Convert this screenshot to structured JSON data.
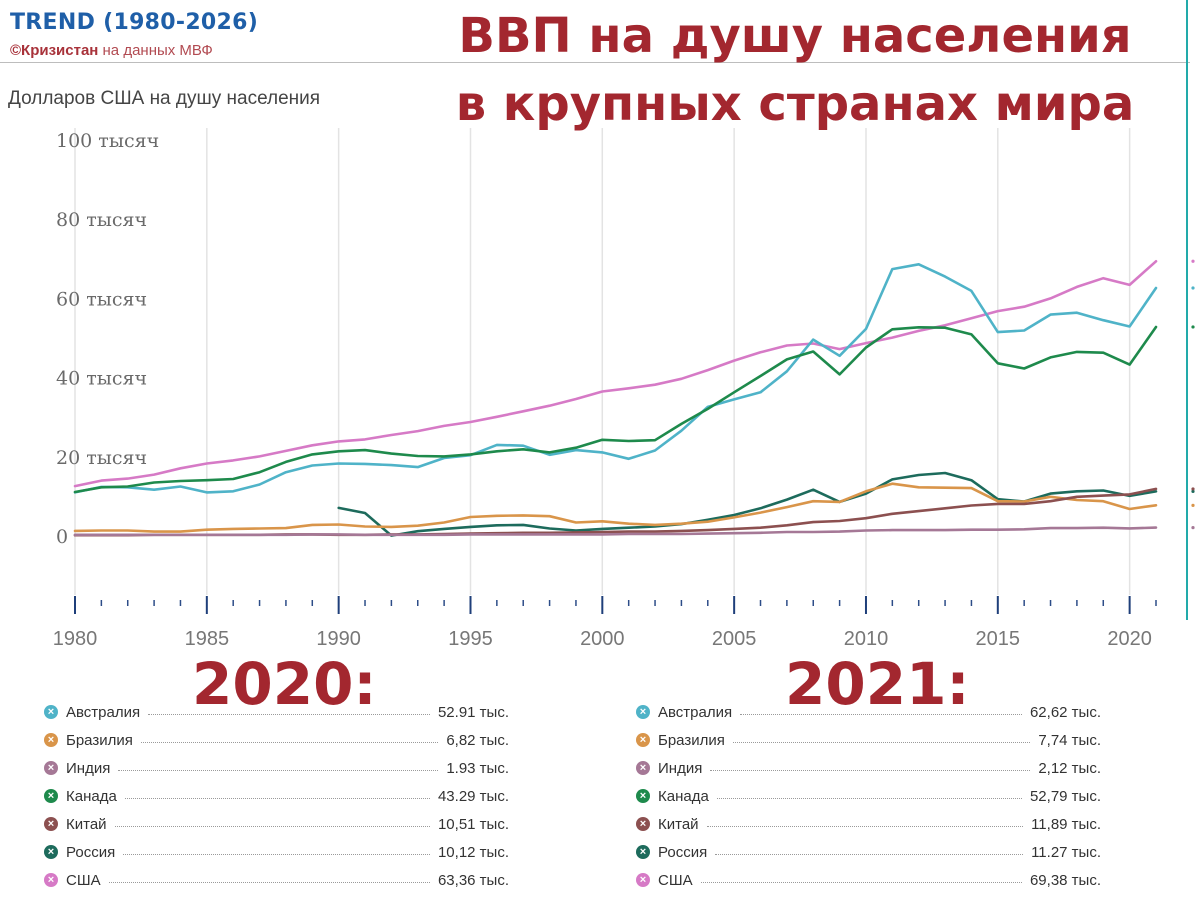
{
  "header": {
    "brand": "TREND (1980-2026)",
    "credit_bold": "©Кризистан",
    "credit_rest": " на данных МВФ",
    "title_line1": "ВВП на душу населения",
    "title_line2": "в крупных странах мира",
    "unit_label": "Долларов США на душу населения"
  },
  "colors": {
    "title": "#a3272f",
    "brand": "#1f5fa8",
    "Австралия": "#4fb3c8",
    "Бразилия": "#d9954a",
    "Индия": "#a57896",
    "Канада": "#1e8a4c",
    "Китай": "#8c5050",
    "Россия": "#1d6b5c",
    "США": "#d67ac6"
  },
  "chart_data": {
    "type": "line",
    "title": "ВВП на душу населения в крупных странах мира",
    "ylabel": "Долларов США на душу населения",
    "xlim": [
      1980,
      2021
    ],
    "ylim": [
      -20000,
      100000
    ],
    "ytick_values": [
      0,
      20000,
      40000,
      60000,
      80000,
      100000
    ],
    "ytick_labels": [
      "0",
      "20 тысяч",
      "40 тысяч",
      "60 тысяч",
      "80 тысяч",
      "100 тысяч"
    ],
    "xtick_values": [
      1980,
      1985,
      1990,
      1995,
      2000,
      2005,
      2010,
      2015,
      2020
    ],
    "xtick_labels": [
      "1980",
      "1985",
      "1990",
      "1995",
      "2000",
      "2005",
      "2010",
      "2015",
      "2020"
    ],
    "grid": true,
    "series": [
      {
        "name": "США",
        "x_start": 1980,
        "values": [
          12600,
          14000,
          14500,
          15500,
          17100,
          18300,
          19100,
          20100,
          21500,
          22900,
          23900,
          24400,
          25500,
          26500,
          27800,
          28800,
          30100,
          31500,
          32900,
          34600,
          36500,
          37300,
          38200,
          39700,
          41900,
          44300,
          46400,
          48100,
          48600,
          47200,
          48700,
          50100,
          51800,
          53200,
          55000,
          56800,
          57900,
          60000,
          62900,
          65100,
          63400,
          69380
        ]
      },
      {
        "name": "Австралия",
        "x_start": 1980,
        "values": [
          11000,
          12400,
          12300,
          11700,
          12500,
          11000,
          11300,
          13000,
          16100,
          17800,
          18300,
          18200,
          17900,
          17400,
          19700,
          20400,
          23000,
          22800,
          20500,
          21700,
          21100,
          19500,
          21600,
          26600,
          32600,
          34500,
          36300,
          41600,
          49600,
          45500,
          52300,
          67400,
          68600,
          65500,
          61900,
          51500,
          51900,
          55900,
          56400,
          54500,
          52910,
          62620
        ]
      },
      {
        "name": "Канада",
        "x_start": 1980,
        "values": [
          11100,
          12300,
          12500,
          13500,
          13900,
          14100,
          14400,
          16100,
          18700,
          20600,
          21400,
          21700,
          20800,
          20200,
          20100,
          20600,
          21400,
          21900,
          21100,
          22300,
          24300,
          24000,
          24200,
          28300,
          32100,
          36300,
          40400,
          44600,
          46600,
          40800,
          47600,
          52200,
          52700,
          52600,
          50900,
          43600,
          42300,
          45100,
          46500,
          46300,
          43290,
          52790
        ]
      },
      {
        "name": "Россия",
        "x_start": 1990,
        "values": [
          7100,
          5800,
          100,
          1200,
          1800,
          2300,
          2700,
          2800,
          1900,
          1400,
          1800,
          2100,
          2400,
          3000,
          4100,
          5300,
          7000,
          9200,
          11700,
          8600,
          10700,
          14300,
          15400,
          15900,
          14100,
          9300,
          8700,
          10700,
          11300,
          11500,
          10120,
          11270
        ]
      },
      {
        "name": "Бразилия",
        "x_start": 1980,
        "values": [
          1300,
          1400,
          1400,
          1100,
          1100,
          1600,
          1800,
          1900,
          2000,
          2800,
          2900,
          2400,
          2300,
          2600,
          3400,
          4800,
          5100,
          5200,
          5000,
          3400,
          3700,
          3100,
          2800,
          3100,
          3600,
          4700,
          5900,
          7300,
          8800,
          8600,
          11300,
          13200,
          12300,
          12200,
          12100,
          8800,
          8700,
          9900,
          9100,
          8800,
          6820,
          7740
        ]
      },
      {
        "name": "Китай",
        "x_start": 1980,
        "values": [
          200,
          200,
          200,
          300,
          300,
          300,
          300,
          300,
          400,
          400,
          300,
          300,
          400,
          400,
          500,
          600,
          700,
          800,
          800,
          900,
          1000,
          1100,
          1100,
          1300,
          1500,
          1800,
          2100,
          2700,
          3500,
          3800,
          4500,
          5600,
          6300,
          7000,
          7700,
          8100,
          8100,
          8800,
          9900,
          10200,
          10510,
          11890
        ]
      },
      {
        "name": "Индия",
        "x_start": 1980,
        "values": [
          300,
          300,
          300,
          300,
          300,
          300,
          300,
          300,
          300,
          400,
          400,
          300,
          300,
          300,
          300,
          400,
          400,
          400,
          400,
          400,
          400,
          500,
          500,
          500,
          600,
          700,
          800,
          1000,
          1000,
          1100,
          1400,
          1500,
          1500,
          1500,
          1600,
          1600,
          1700,
          2000,
          2000,
          2100,
          1930,
          2120
        ]
      }
    ]
  },
  "legend_2020": {
    "heading": "2020:",
    "items": [
      {
        "name": "Австралия",
        "value": "52.91 тыс."
      },
      {
        "name": "Бразилия",
        "value": "6,82 тыс."
      },
      {
        "name": "Индия",
        "value": "1.93 тыс."
      },
      {
        "name": "Канада",
        "value": "43.29 тыс."
      },
      {
        "name": "Китай",
        "value": "10,51 тыс."
      },
      {
        "name": "Россия",
        "value": "10,12 тыс."
      },
      {
        "name": "США",
        "value": "63,36 тыс."
      }
    ]
  },
  "legend_2021": {
    "heading": "2021:",
    "items": [
      {
        "name": "Австралия",
        "value": "62,62 тыс."
      },
      {
        "name": "Бразилия",
        "value": "7,74 тыс."
      },
      {
        "name": "Индия",
        "value": "2,12 тыс."
      },
      {
        "name": "Канада",
        "value": "52,79 тыс."
      },
      {
        "name": "Китай",
        "value": "11,89 тыс."
      },
      {
        "name": "Россия",
        "value": "11.27 тыс."
      },
      {
        "name": "США",
        "value": "69,38 тыс."
      }
    ]
  }
}
